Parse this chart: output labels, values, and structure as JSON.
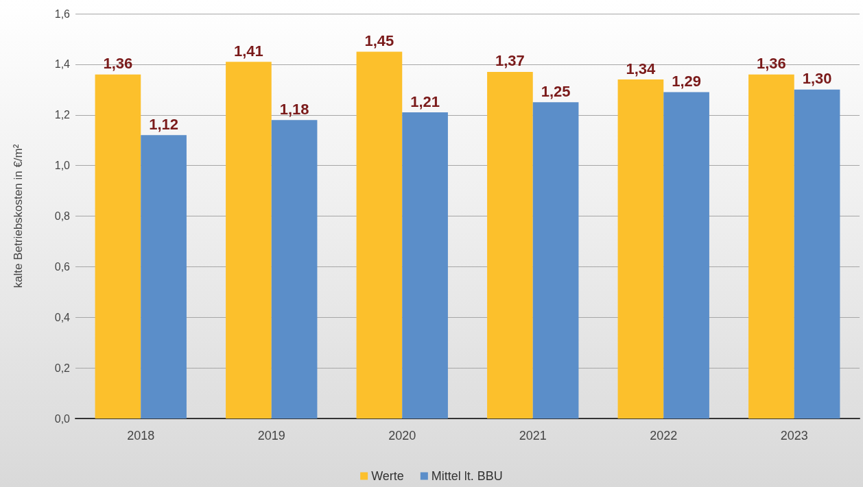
{
  "chart_data": {
    "type": "bar",
    "ylabel": "kalte Betriebskosten in €/m²",
    "categories": [
      "2018",
      "2019",
      "2020",
      "2021",
      "2022",
      "2023"
    ],
    "series": [
      {
        "name": "Werte",
        "color": "#fcc02c",
        "values": [
          1.36,
          1.41,
          1.45,
          1.37,
          1.34,
          1.36
        ],
        "value_labels": [
          "1,36",
          "1,41",
          "1,45",
          "1,37",
          "1,34",
          "1,36"
        ]
      },
      {
        "name": "Mittel lt. BBU",
        "color": "#5b8ec9",
        "values": [
          1.12,
          1.18,
          1.21,
          1.25,
          1.29,
          1.3
        ],
        "value_labels": [
          "1,12",
          "1,18",
          "1,21",
          "1,25",
          "1,29",
          "1,30"
        ]
      }
    ],
    "ylim": [
      0,
      1.6
    ],
    "yticks": [
      {
        "value": 0,
        "label": "0,0"
      },
      {
        "value": 0.2,
        "label": "0,2"
      },
      {
        "value": 0.4,
        "label": "0,4"
      },
      {
        "value": 0.6,
        "label": "0,6"
      },
      {
        "value": 0.8,
        "label": "0,8"
      },
      {
        "value": 1.0,
        "label": "1,0"
      },
      {
        "value": 1.2,
        "label": "1,2"
      },
      {
        "value": 1.4,
        "label": "1,4"
      },
      {
        "value": 1.6,
        "label": "1,6"
      }
    ],
    "grid": "y",
    "legend": "bottom"
  }
}
